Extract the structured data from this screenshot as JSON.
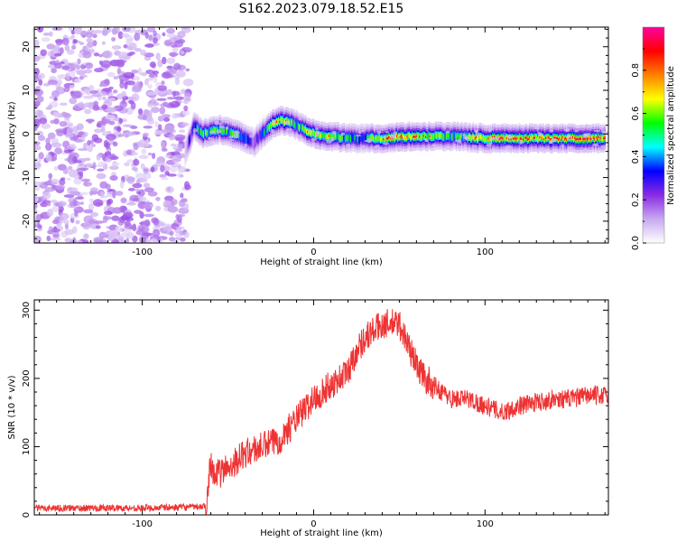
{
  "title": "S162.2023.079.18.52.E15",
  "chart_data": [
    {
      "type": "heatmap",
      "xlabel": "Height of straight line (km)",
      "ylabel": "Frequency (Hz)",
      "xlim": [
        -163,
        172
      ],
      "ylim": [
        -25,
        24.5
      ],
      "x_ticks": [
        -100,
        0,
        100
      ],
      "y_ticks": [
        -20,
        -10,
        0,
        10,
        20
      ],
      "colorbar": {
        "label": "Normalized spectral amplitude",
        "range": [
          0,
          1
        ],
        "ticks": [
          "0.0",
          "0.2",
          "0.4",
          "0.6",
          "0.8"
        ],
        "colors": [
          "#ffffff",
          "#c8a8f0",
          "#8a2be2",
          "#0000ff",
          "#00ffff",
          "#00ff00",
          "#ffff00",
          "#ff8000",
          "#ff0000",
          "#ff00a0"
        ]
      },
      "noise_region": {
        "x_range": [
          -163,
          -73
        ],
        "amplitude_range": [
          0.05,
          0.2
        ]
      },
      "ridge": {
        "x": [
          -75,
          -72,
          -70,
          -65,
          -55,
          -45,
          -40,
          -35,
          -30,
          -25,
          -20,
          -15,
          -10,
          -5,
          0,
          5,
          10,
          20,
          30,
          40,
          60,
          80,
          100,
          120,
          140,
          160,
          170
        ],
        "frequency": [
          -4,
          -1,
          2,
          0,
          1,
          0,
          -1,
          -2,
          0,
          2,
          3,
          3,
          2,
          1,
          0,
          -0.5,
          -0.5,
          -1,
          -1,
          -1,
          -0.5,
          -0.5,
          -1,
          -1,
          -1,
          -1,
          -1
        ],
        "peak_amplitude": [
          0.3,
          0.5,
          0.6,
          0.8,
          0.7,
          0.75,
          0.6,
          0.5,
          0.6,
          0.8,
          0.9,
          0.85,
          0.7,
          0.8,
          0.85,
          0.8,
          0.85,
          0.7,
          0.65,
          0.9,
          0.9,
          0.7,
          0.9,
          0.9,
          0.9,
          0.95,
          0.9
        ]
      }
    },
    {
      "type": "line",
      "xlabel": "Height of straight line (km)",
      "ylabel": "SNR (10 * v/v)",
      "xlim": [
        -163,
        172
      ],
      "ylim": [
        0,
        315
      ],
      "x_ticks": [
        -100,
        0,
        100
      ],
      "y_ticks": [
        0,
        100,
        200,
        300
      ],
      "color": "#ee3333",
      "series": [
        {
          "x": [
            -163,
            -140,
            -100,
            -80,
            -63,
            -60,
            -58,
            -55,
            -50,
            -40,
            -30,
            -20,
            -10,
            0,
            10,
            20,
            25,
            30,
            35,
            40,
            45,
            50,
            55,
            60,
            65,
            70,
            75,
            80,
            90,
            100,
            110,
            120,
            130,
            140,
            150,
            160,
            172
          ],
          "y": [
            10,
            10,
            10,
            11,
            12,
            80,
            60,
            60,
            70,
            90,
            100,
            110,
            140,
            170,
            190,
            210,
            240,
            260,
            270,
            280,
            280,
            280,
            250,
            220,
            200,
            190,
            180,
            170,
            170,
            160,
            150,
            160,
            165,
            170,
            170,
            175,
            175
          ]
        }
      ]
    }
  ]
}
